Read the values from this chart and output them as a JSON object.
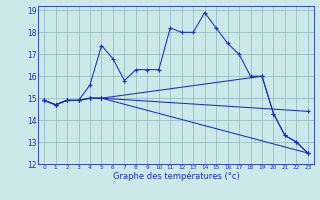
{
  "xlabel": "Graphe des températures (°c)",
  "bg_color": "#cce8e8",
  "line_color": "#1a2ecc",
  "grid_color": "#88bbbb",
  "xlim": [
    -0.5,
    23.5
  ],
  "ylim": [
    12,
    19.2
  ],
  "yticks": [
    12,
    13,
    14,
    15,
    16,
    17,
    18,
    19
  ],
  "xticks": [
    0,
    1,
    2,
    3,
    4,
    5,
    6,
    7,
    8,
    9,
    10,
    11,
    12,
    13,
    14,
    15,
    16,
    17,
    18,
    19,
    20,
    21,
    22,
    23
  ],
  "series": [
    {
      "x": [
        0,
        1,
        2,
        3,
        4,
        5,
        6,
        7,
        8,
        9,
        10,
        11,
        12,
        13,
        14,
        15,
        16,
        17,
        18,
        19,
        20,
        21,
        22,
        23
      ],
      "y": [
        14.9,
        14.7,
        14.9,
        14.9,
        15.6,
        17.4,
        16.8,
        15.8,
        16.3,
        16.3,
        16.3,
        18.2,
        18.0,
        18.0,
        18.9,
        18.2,
        17.5,
        17.0,
        16.0,
        16.0,
        14.3,
        13.3,
        13.0,
        12.5
      ]
    },
    {
      "x": [
        0,
        1,
        2,
        3,
        4,
        5,
        23
      ],
      "y": [
        14.9,
        14.7,
        14.9,
        14.9,
        15.0,
        15.0,
        12.5
      ]
    },
    {
      "x": [
        0,
        1,
        2,
        3,
        4,
        5,
        23
      ],
      "y": [
        14.9,
        14.7,
        14.9,
        14.9,
        15.0,
        15.0,
        14.4
      ]
    },
    {
      "x": [
        0,
        1,
        2,
        3,
        4,
        5,
        19,
        20,
        21,
        22,
        23
      ],
      "y": [
        14.9,
        14.7,
        14.9,
        14.9,
        15.0,
        15.0,
        16.0,
        14.3,
        13.3,
        13.0,
        12.5
      ]
    }
  ]
}
